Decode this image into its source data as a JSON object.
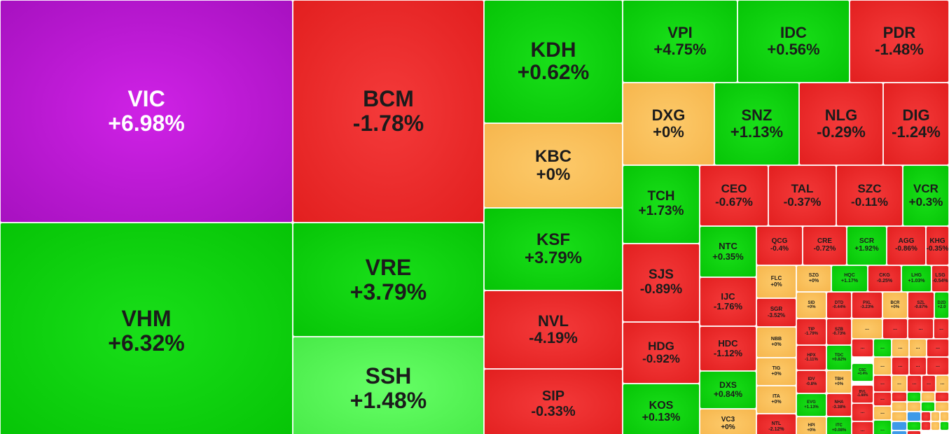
{
  "palette": {
    "increase": "#0ecf0e",
    "strong_increase": "#58f558",
    "decrease": "#ea2a2a",
    "reference": "#f8bf58",
    "ceiling": "#bf18d6",
    "floor": "#3d9ae8"
  },
  "tiles": [
    {
      "symbol": "VIC",
      "change": "+6.98%",
      "status": "ceiling"
    },
    {
      "symbol": "VHM",
      "change": "+6.32%",
      "status": "increase"
    },
    {
      "symbol": "BCM",
      "change": "-1.78%",
      "status": "decrease"
    },
    {
      "symbol": "VRE",
      "change": "+3.79%",
      "status": "increase"
    },
    {
      "symbol": "SSH",
      "change": "+1.48%",
      "status": "strong_increase"
    },
    {
      "symbol": "KDH",
      "change": "+0.62%",
      "status": "increase"
    },
    {
      "symbol": "KBC",
      "change": "+0%",
      "status": "reference"
    },
    {
      "symbol": "KSF",
      "change": "+3.79%",
      "status": "increase"
    },
    {
      "symbol": "NVL",
      "change": "-4.19%",
      "status": "decrease"
    },
    {
      "symbol": "SIP",
      "change": "-0.33%",
      "status": "decrease"
    },
    {
      "symbol": "VPI",
      "change": "+4.75%",
      "status": "increase"
    },
    {
      "symbol": "IDC",
      "change": "+0.56%",
      "status": "increase"
    },
    {
      "symbol": "PDR",
      "change": "-1.48%",
      "status": "decrease"
    },
    {
      "symbol": "DXG",
      "change": "+0%",
      "status": "reference"
    },
    {
      "symbol": "SNZ",
      "change": "+1.13%",
      "status": "increase"
    },
    {
      "symbol": "NLG",
      "change": "-0.29%",
      "status": "decrease"
    },
    {
      "symbol": "DIG",
      "change": "-1.24%",
      "status": "decrease"
    },
    {
      "symbol": "TCH",
      "change": "+1.73%",
      "status": "increase"
    },
    {
      "symbol": "CEO",
      "change": "-0.67%",
      "status": "decrease"
    },
    {
      "symbol": "TAL",
      "change": "-0.37%",
      "status": "decrease"
    },
    {
      "symbol": "SZC",
      "change": "-0.11%",
      "status": "decrease"
    },
    {
      "symbol": "VCR",
      "change": "+0.3%",
      "status": "increase"
    },
    {
      "symbol": "SJS",
      "change": "-0.89%",
      "status": "decrease"
    },
    {
      "symbol": "HDG",
      "change": "-0.92%",
      "status": "decrease"
    },
    {
      "symbol": "KOS",
      "change": "+0.13%",
      "status": "increase"
    },
    {
      "symbol": "NTC",
      "change": "+0.35%",
      "status": "increase"
    },
    {
      "symbol": "IJC",
      "change": "-1.76%",
      "status": "decrease"
    },
    {
      "symbol": "HDC",
      "change": "-1.12%",
      "status": "decrease"
    },
    {
      "symbol": "DXS",
      "change": "+0.84%",
      "status": "increase"
    },
    {
      "symbol": "VC3",
      "change": "+0%",
      "status": "reference"
    },
    {
      "symbol": "QCG",
      "change": "-0.4%",
      "status": "decrease"
    },
    {
      "symbol": "CRE",
      "change": "-0.72%",
      "status": "decrease"
    },
    {
      "symbol": "SCR",
      "change": "+1.92%",
      "status": "increase"
    },
    {
      "symbol": "AGG",
      "change": "-0.86%",
      "status": "decrease"
    },
    {
      "symbol": "KHG",
      "change": "-0.35%",
      "status": "decrease"
    },
    {
      "symbol": "FLC",
      "change": "+0%",
      "status": "reference"
    },
    {
      "symbol": "SZG",
      "change": "+0%",
      "status": "reference"
    },
    {
      "symbol": "HQC",
      "change": "+1.17%",
      "status": "increase"
    },
    {
      "symbol": "CKG",
      "change": "-0.25%",
      "status": "decrease"
    },
    {
      "symbol": "LHG",
      "change": "+1.03%",
      "status": "increase"
    },
    {
      "symbol": "LSG",
      "change": "-0.54%",
      "status": "decrease"
    },
    {
      "symbol": "SGR",
      "change": "-3.52%",
      "status": "decrease"
    },
    {
      "symbol": "SID",
      "change": "+0%",
      "status": "reference"
    },
    {
      "symbol": "DTD",
      "change": "-0.44%",
      "status": "decrease"
    },
    {
      "symbol": "PXL",
      "change": "-3.23%",
      "status": "decrease"
    },
    {
      "symbol": "BCR",
      "change": "+0%",
      "status": "reference"
    },
    {
      "symbol": "SZL",
      "change": "-0.87%",
      "status": "decrease"
    },
    {
      "symbol": "D2D",
      "change": "+2.0",
      "status": "increase"
    },
    {
      "symbol": "NBB",
      "change": "+0%",
      "status": "reference"
    },
    {
      "symbol": "TIP",
      "change": "-1.79%",
      "status": "decrease"
    },
    {
      "symbol": "SZB",
      "change": "-0.73%",
      "status": "decrease"
    },
    {
      "symbol": "HPX",
      "change": "-1.11%",
      "status": "decrease"
    },
    {
      "symbol": "TDC",
      "change": "+0.82%",
      "status": "increase"
    },
    {
      "symbol": "TIG",
      "change": "+0%",
      "status": "reference"
    },
    {
      "symbol": "IDV",
      "change": "-0.8%",
      "status": "decrease"
    },
    {
      "symbol": "TBH",
      "change": "+0%",
      "status": "reference"
    },
    {
      "symbol": "CSC",
      "change": "+0.4%",
      "status": "increase"
    },
    {
      "symbol": "BVL",
      "change": "-1.88%",
      "status": "decrease"
    },
    {
      "symbol": "ITA",
      "change": "+0%",
      "status": "reference"
    },
    {
      "symbol": "EVG",
      "change": "+1.13%",
      "status": "increase"
    },
    {
      "symbol": "NHA",
      "change": "-3.38%",
      "status": "decrease"
    },
    {
      "symbol": "NTL",
      "change": "-2.12%",
      "status": "decrease"
    },
    {
      "symbol": "HPI",
      "change": "+0%",
      "status": "reference"
    },
    {
      "symbol": "ITC",
      "change": "+0.08%",
      "status": "increase"
    }
  ],
  "collapsed_label": "...",
  "collapsed_tiles": [
    {
      "status": "reference"
    },
    {
      "status": "decrease"
    },
    {
      "status": "decrease"
    },
    {
      "status": "decrease"
    },
    {
      "status": "decrease"
    },
    {
      "status": "increase"
    },
    {
      "status": "reference"
    },
    {
      "status": "reference"
    },
    {
      "status": "decrease"
    },
    {
      "status": "reference"
    },
    {
      "status": "decrease"
    },
    {
      "status": "decrease"
    },
    {
      "status": "decrease"
    },
    {
      "status": "decrease"
    },
    {
      "status": "reference"
    },
    {
      "status": "decrease"
    },
    {
      "status": "decrease"
    },
    {
      "status": "reference"
    },
    {
      "status": "decrease"
    },
    {
      "status": "decrease"
    },
    {
      "status": "decrease"
    },
    {
      "status": "reference"
    },
    {
      "status": "increase"
    }
  ],
  "micro_tiles": [
    {
      "status": "decrease"
    },
    {
      "status": "increase"
    },
    {
      "status": "reference"
    },
    {
      "status": "decrease"
    },
    {
      "status": "reference"
    },
    {
      "status": "reference"
    },
    {
      "status": "increase"
    },
    {
      "status": "reference"
    },
    {
      "status": "reference"
    },
    {
      "status": "floor"
    },
    {
      "status": "decrease"
    },
    {
      "status": "reference"
    },
    {
      "status": "reference"
    },
    {
      "status": "floor"
    },
    {
      "status": "increase"
    },
    {
      "status": "decrease"
    },
    {
      "status": "reference"
    },
    {
      "status": "increase"
    },
    {
      "status": "floor"
    },
    {
      "status": "decrease"
    }
  ]
}
